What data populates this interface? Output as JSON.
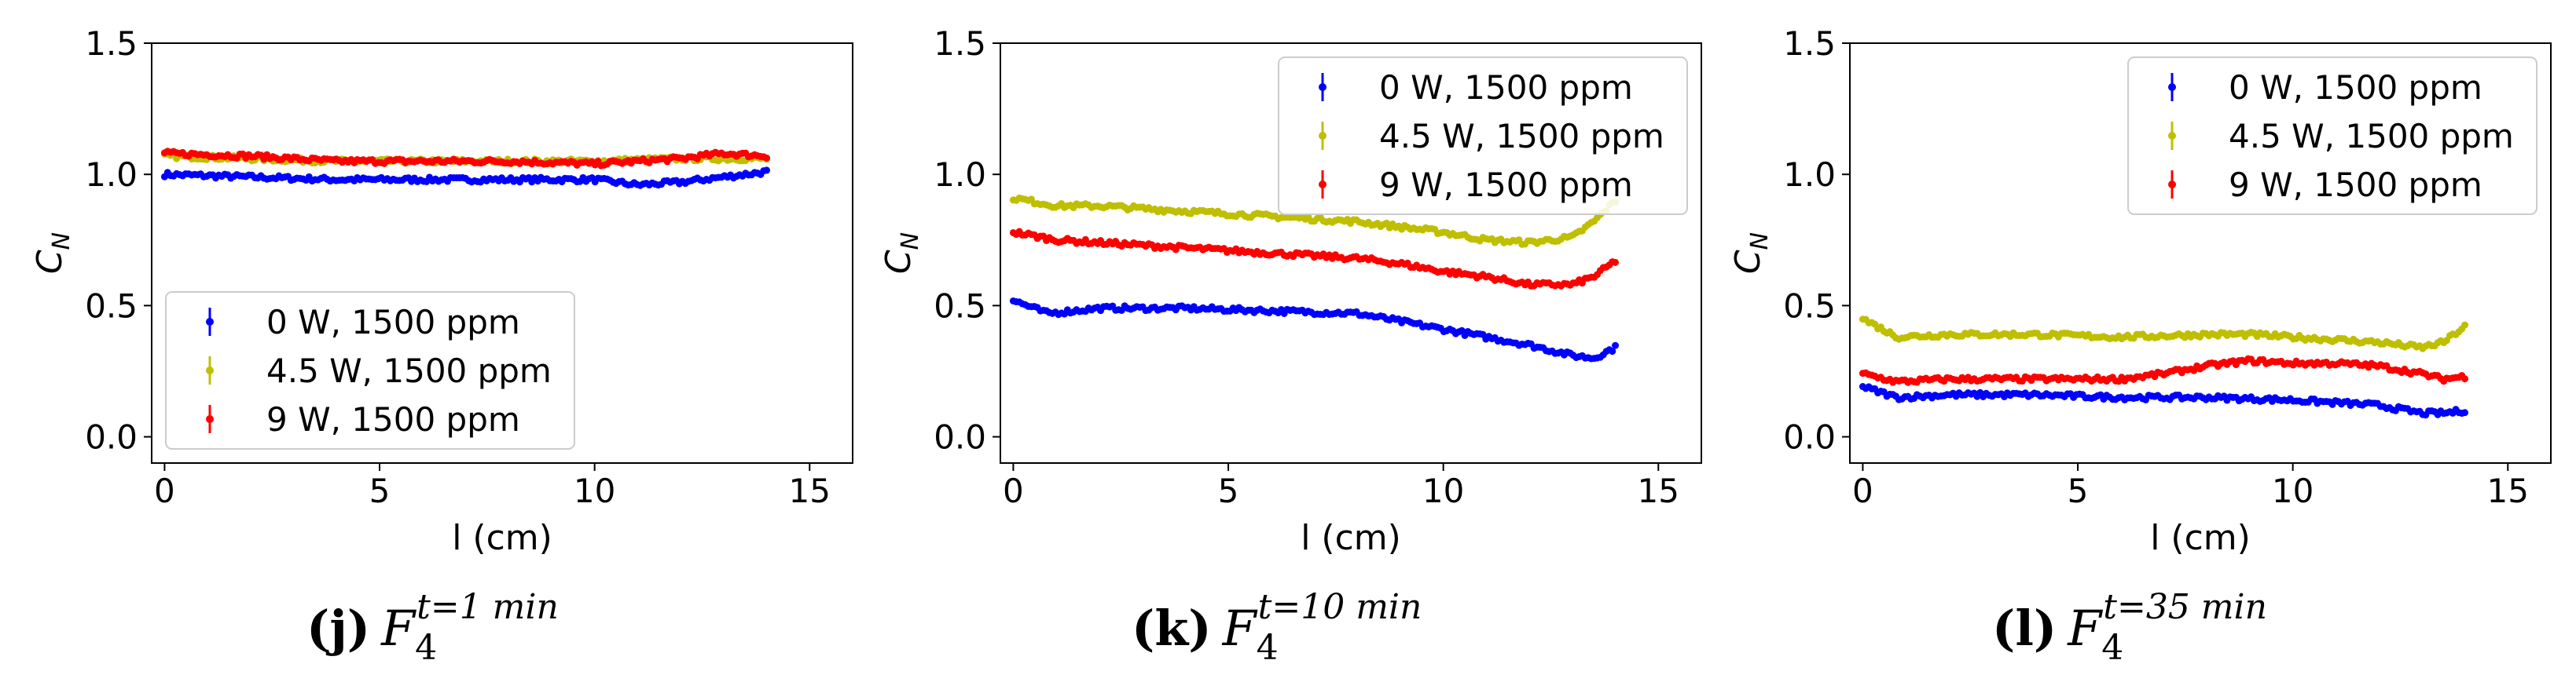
{
  "chart_data": [
    {
      "type": "scatter",
      "panel_letter": "j",
      "caption": {
        "letter": "(j)",
        "symbol": "F",
        "subscript": "4",
        "superscript": "t=1 min"
      },
      "xlabel": "l (cm)",
      "ylabel_base": "C",
      "ylabel_sub": "N",
      "xlim": [
        -0.3,
        16
      ],
      "ylim": [
        -0.1,
        1.5
      ],
      "xticks": [
        0,
        5,
        10,
        15
      ],
      "xtick_labels": [
        "0",
        "5",
        "10",
        "15"
      ],
      "yticks": [
        0.0,
        0.5,
        1.0,
        1.5
      ],
      "ytick_labels": [
        "0.0",
        "0.5",
        "1.0",
        "1.5"
      ],
      "legend_position": "lower-left",
      "x_range": [
        0,
        14
      ],
      "series": [
        {
          "name": "0 W, 1500 ppm",
          "color": "#0000ff",
          "x": [
            0,
            2,
            4,
            6,
            8,
            10,
            11,
            12,
            13,
            14
          ],
          "y": [
            1.0,
            0.99,
            0.98,
            0.98,
            0.98,
            0.98,
            0.96,
            0.97,
            0.99,
            1.01
          ]
        },
        {
          "name": "4.5 W, 1500 ppm",
          "color": "#bfbf00",
          "x": [
            0,
            2,
            4,
            6,
            8,
            10,
            12,
            14
          ],
          "y": [
            1.07,
            1.06,
            1.05,
            1.05,
            1.05,
            1.05,
            1.06,
            1.06
          ]
        },
        {
          "name": "9 W, 1500 ppm",
          "color": "#ff0000",
          "x": [
            0,
            2,
            4,
            6,
            8,
            10,
            12,
            13,
            14
          ],
          "y": [
            1.08,
            1.07,
            1.05,
            1.05,
            1.05,
            1.04,
            1.06,
            1.08,
            1.07
          ]
        }
      ]
    },
    {
      "type": "scatter",
      "panel_letter": "k",
      "caption": {
        "letter": "(k)",
        "symbol": "F",
        "subscript": "4",
        "superscript": "t=10 min"
      },
      "xlabel": "l (cm)",
      "ylabel_base": "C",
      "ylabel_sub": "N",
      "xlim": [
        -0.3,
        16
      ],
      "ylim": [
        -0.1,
        1.5
      ],
      "xticks": [
        0,
        5,
        10,
        15
      ],
      "xtick_labels": [
        "0",
        "5",
        "10",
        "15"
      ],
      "yticks": [
        0.0,
        0.5,
        1.0,
        1.5
      ],
      "ytick_labels": [
        "0.0",
        "0.5",
        "1.0",
        "1.5"
      ],
      "legend_position": "top-right",
      "x_range": [
        0,
        14
      ],
      "series": [
        {
          "name": "0 W, 1500 ppm",
          "color": "#0000ff",
          "x": [
            0,
            0.8,
            2,
            4,
            6,
            8,
            9,
            10,
            11,
            12,
            13,
            13.5,
            14
          ],
          "y": [
            0.52,
            0.47,
            0.49,
            0.49,
            0.48,
            0.47,
            0.44,
            0.41,
            0.38,
            0.35,
            0.31,
            0.3,
            0.34
          ]
        },
        {
          "name": "4.5 W, 1500 ppm",
          "color": "#bfbf00",
          "x": [
            0,
            1,
            2,
            4,
            6,
            8,
            9,
            10,
            11,
            12,
            13,
            13.5,
            14
          ],
          "y": [
            0.91,
            0.88,
            0.88,
            0.86,
            0.84,
            0.82,
            0.8,
            0.78,
            0.75,
            0.74,
            0.76,
            0.82,
            0.9
          ]
        },
        {
          "name": "9 W, 1500 ppm",
          "color": "#ff0000",
          "x": [
            0,
            1,
            2,
            4,
            6,
            8,
            9,
            10,
            11,
            12,
            13,
            13.5,
            14
          ],
          "y": [
            0.78,
            0.75,
            0.74,
            0.72,
            0.7,
            0.68,
            0.66,
            0.63,
            0.61,
            0.58,
            0.58,
            0.61,
            0.67
          ]
        }
      ]
    },
    {
      "type": "scatter",
      "panel_letter": "l",
      "caption": {
        "letter": "(l)",
        "symbol": "F",
        "subscript": "4",
        "superscript": "t=35 min"
      },
      "xlabel": "l (cm)",
      "ylabel_base": "C",
      "ylabel_sub": "N",
      "xlim": [
        -0.3,
        16
      ],
      "ylim": [
        -0.1,
        1.5
      ],
      "xticks": [
        0,
        5,
        10,
        15
      ],
      "xtick_labels": [
        "0",
        "5",
        "10",
        "15"
      ],
      "yticks": [
        0.0,
        0.5,
        1.0,
        1.5
      ],
      "ytick_labels": [
        "0.0",
        "0.5",
        "1.0",
        "1.5"
      ],
      "legend_position": "top-right",
      "x_range": [
        0,
        14
      ],
      "series": [
        {
          "name": "0 W, 1500 ppm",
          "color": "#0000ff",
          "x": [
            0,
            0.8,
            2,
            4,
            6,
            8,
            10,
            12,
            13,
            13.5,
            14
          ],
          "y": [
            0.19,
            0.15,
            0.16,
            0.16,
            0.15,
            0.15,
            0.14,
            0.12,
            0.09,
            0.09,
            0.1
          ]
        },
        {
          "name": "4.5 W, 1500 ppm",
          "color": "#bfbf00",
          "x": [
            0,
            0.8,
            2,
            4,
            6,
            8,
            9,
            10,
            12,
            13,
            13.5,
            14
          ],
          "y": [
            0.45,
            0.38,
            0.39,
            0.39,
            0.38,
            0.39,
            0.39,
            0.38,
            0.36,
            0.34,
            0.36,
            0.42
          ]
        },
        {
          "name": "9 W, 1500 ppm",
          "color": "#ff0000",
          "x": [
            0,
            0.8,
            2,
            4,
            6,
            7,
            8,
            9,
            10,
            11,
            12,
            13,
            13.5,
            14
          ],
          "y": [
            0.24,
            0.21,
            0.22,
            0.22,
            0.22,
            0.24,
            0.27,
            0.29,
            0.28,
            0.28,
            0.27,
            0.24,
            0.22,
            0.23
          ]
        }
      ]
    }
  ]
}
